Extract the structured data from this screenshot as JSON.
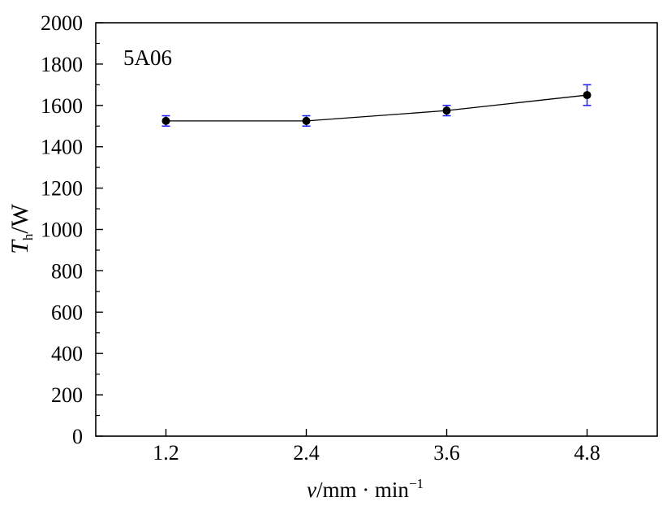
{
  "chart_data": {
    "type": "line",
    "annotation": "5A06",
    "ylabel": {
      "symbol": "T",
      "subscript": "h",
      "unit": "/W"
    },
    "xlabel": {
      "symbol": "v",
      "rest": "/mm · min",
      "superscript": "−1"
    },
    "x_ticks": [
      "1.2",
      "2.4",
      "3.6",
      "4.8"
    ],
    "y_ticks": [
      "0",
      "200",
      "400",
      "600",
      "800",
      "1000",
      "1200",
      "1400",
      "1600",
      "1800",
      "2000"
    ],
    "xlim": [
      0.6,
      5.4
    ],
    "ylim": [
      0,
      2000
    ],
    "grid": false,
    "series": [
      {
        "x": [
          1.2,
          2.4,
          3.6,
          4.8
        ],
        "y": [
          1525,
          1525,
          1575,
          1650
        ],
        "yerr": [
          25,
          25,
          25,
          50
        ],
        "marker_color": "#000000",
        "line_color": "#000000",
        "errorbar_color": "#1a1aff"
      }
    ]
  }
}
